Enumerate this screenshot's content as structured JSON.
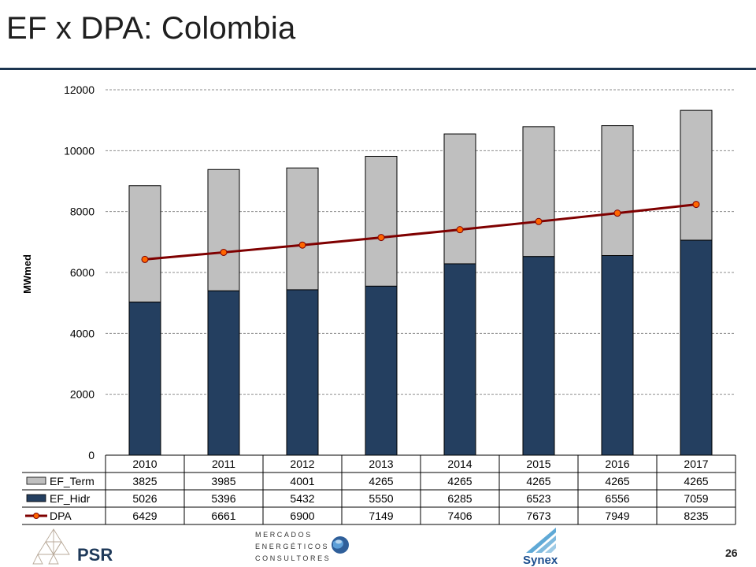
{
  "header": {
    "title": "EF x DPA: Colombia"
  },
  "footer": {
    "page_number": "26",
    "logos": {
      "psr": {
        "text": "PSR",
        "icon": "psr-triangles-logo"
      },
      "mercados": {
        "lines": [
          "MERCADOS",
          "ENERGÉTICOS",
          "CONSULTORES"
        ],
        "icon": "globe-icon"
      },
      "synex": {
        "text": "Synex",
        "icon": "synex-logo"
      }
    }
  },
  "chart_data": {
    "type": "bar",
    "stacked": true,
    "categories": [
      "2010",
      "2011",
      "2012",
      "2013",
      "2014",
      "2015",
      "2016",
      "2017"
    ],
    "series": [
      {
        "name": "EF_Term",
        "kind": "bar",
        "color": "#bfbfbf",
        "values": [
          3825,
          3985,
          4001,
          4265,
          4265,
          4265,
          4265,
          4265
        ]
      },
      {
        "name": "EF_Hidr",
        "kind": "bar",
        "color": "#243f60",
        "values": [
          5026,
          5396,
          5432,
          5550,
          6285,
          6523,
          6556,
          7059
        ]
      },
      {
        "name": "DPA",
        "kind": "line",
        "color": "#7f0000",
        "marker_color": "#ff6600",
        "values": [
          6429,
          6661,
          6900,
          7149,
          7406,
          7673,
          7949,
          8235
        ]
      }
    ],
    "title": "",
    "xlabel": "",
    "ylabel": "MWmed",
    "ylim": [
      0,
      12000
    ],
    "yticks": [
      0,
      2000,
      4000,
      6000,
      8000,
      10000,
      12000
    ],
    "grid": true,
    "legend": "data-table"
  }
}
